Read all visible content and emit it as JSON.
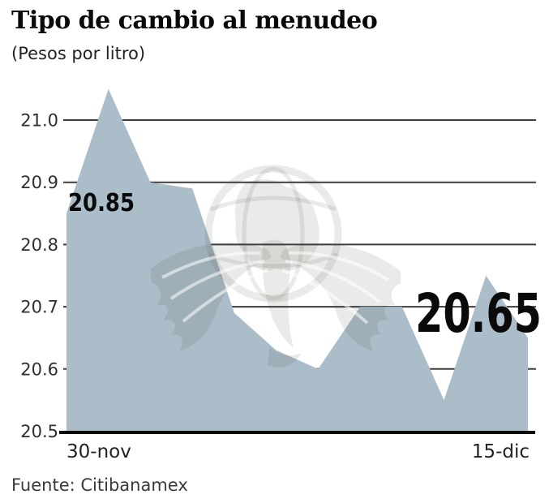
{
  "header": {
    "title": "Tipo de cambio al menudeo",
    "subtitle": "(Pesos por litro)"
  },
  "footer": {
    "source": "Fuente: Citibanamex"
  },
  "colors": {
    "area_fill": "#abbdc8",
    "gridline": "#3d3d3d",
    "axis": "#0b0b0b",
    "tick_text": "#2f2f2f",
    "annotation_text": "#0a0a0a",
    "watermark": "rgba(60,60,52,0.11)",
    "background": "#ffffff"
  },
  "chart_data": {
    "type": "area",
    "title": "Tipo de cambio al menudeo",
    "subtitle": "(Pesos por litro)",
    "x": [
      "30-nov",
      "01-dic",
      "02-dic",
      "03-dic",
      "04-dic",
      "07-dic",
      "08-dic",
      "09-dic",
      "10-dic",
      "11-dic",
      "14-dic",
      "15-dic"
    ],
    "values": [
      20.85,
      21.05,
      20.9,
      20.89,
      20.69,
      20.63,
      20.6,
      20.7,
      20.7,
      20.55,
      20.75,
      20.65
    ],
    "ylim": [
      20.5,
      21.07
    ],
    "yticks": [
      21.0,
      20.9,
      20.8,
      20.7,
      20.6,
      20.5
    ],
    "ytick_labels": [
      "21.0",
      "20.9",
      "20.8",
      "20.7",
      "20.6",
      "20.5"
    ],
    "xtick_labels": [
      "30-nov",
      "15-dic"
    ],
    "grid": true,
    "legend": false,
    "annotations": [
      {
        "text": "20.85",
        "index": 0,
        "size": "small"
      },
      {
        "text": "20.65",
        "index": 11,
        "size": "large"
      }
    ],
    "watermark": "eagle-globe-emblem",
    "source": "Fuente: Citibanamex"
  }
}
